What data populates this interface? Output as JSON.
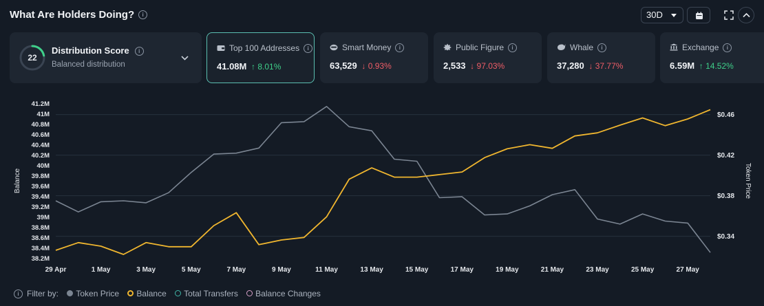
{
  "header": {
    "title": "What Are Holders Doing?",
    "period": "30D"
  },
  "distribution": {
    "score": "22",
    "score_fraction": 0.22,
    "title": "Distribution Score",
    "subtitle": "Balanced distribution"
  },
  "cards": [
    {
      "label": "Top 100 Addresses",
      "icon": "wallet-icon",
      "value": "41.08M",
      "change": "8.01%",
      "direction": "up",
      "arrow": "↑"
    },
    {
      "label": "Smart Money",
      "icon": "smart-money-icon",
      "value": "63,529",
      "change": "0.93%",
      "direction": "down",
      "arrow": "↓"
    },
    {
      "label": "Public Figure",
      "icon": "public-figure-icon",
      "value": "2,533",
      "change": "97.03%",
      "direction": "down",
      "arrow": "↓"
    },
    {
      "label": "Whale",
      "icon": "whale-icon",
      "value": "37,280",
      "change": "37.77%",
      "direction": "down",
      "arrow": "↓"
    },
    {
      "label": "Exchange",
      "icon": "bank-icon",
      "value": "6.59M",
      "change": "14.52%",
      "direction": "up",
      "arrow": "↑"
    }
  ],
  "chart_data": {
    "type": "line",
    "x": [
      "29 Apr",
      "30 Apr",
      "1 May",
      "2 May",
      "3 May",
      "4 May",
      "5 May",
      "6 May",
      "7 May",
      "8 May",
      "9 May",
      "10 May",
      "11 May",
      "12 May",
      "13 May",
      "14 May",
      "15 May",
      "16 May",
      "17 May",
      "18 May",
      "19 May",
      "20 May",
      "21 May",
      "22 May",
      "23 May",
      "24 May",
      "25 May",
      "26 May",
      "27 May",
      "28 May"
    ],
    "x_tick_labels": [
      "29 Apr",
      "1 May",
      "3 May",
      "5 May",
      "7 May",
      "9 May",
      "11 May",
      "13 May",
      "15 May",
      "17 May",
      "19 May",
      "21 May",
      "23 May",
      "25 May",
      "27 May"
    ],
    "ylabel_left": "Balance",
    "ylabel_right": "Token Price",
    "ylim_left": [
      38.15,
      41.3
    ],
    "ylim_right": [
      0.316,
      0.476
    ],
    "y_ticks_left": [
      "38.2M",
      "38.4M",
      "38.6M",
      "38.8M",
      "39M",
      "39.2M",
      "39.4M",
      "39.6M",
      "39.8M",
      "40M",
      "40.2M",
      "40.4M",
      "40.6M",
      "40.8M",
      "41M",
      "41.2M"
    ],
    "y_ticks_left_values": [
      38.2,
      38.4,
      38.6,
      38.8,
      39.0,
      39.2,
      39.4,
      39.6,
      39.8,
      40.0,
      40.2,
      40.4,
      40.6,
      40.8,
      41.0,
      41.2
    ],
    "y_ticks_right": [
      "$0.34",
      "$0.38",
      "$0.42",
      "$0.46"
    ],
    "y_ticks_right_values": [
      0.34,
      0.38,
      0.42,
      0.46
    ],
    "grid": true,
    "series": [
      {
        "name": "Balance",
        "axis": "left",
        "color": "#f0b62f",
        "values": [
          38.35,
          38.5,
          38.43,
          38.27,
          38.5,
          38.42,
          38.42,
          38.83,
          39.08,
          38.46,
          38.55,
          38.6,
          39.0,
          39.73,
          39.95,
          39.77,
          39.77,
          39.82,
          39.87,
          40.15,
          40.32,
          40.4,
          40.33,
          40.57,
          40.63,
          40.78,
          40.92,
          40.77,
          40.9,
          41.08
        ]
      },
      {
        "name": "Token Price",
        "axis": "right",
        "color": "#7b8592",
        "values": [
          0.375,
          0.364,
          0.374,
          0.375,
          0.373,
          0.383,
          0.403,
          0.421,
          0.422,
          0.427,
          0.452,
          0.453,
          0.468,
          0.448,
          0.444,
          0.416,
          0.414,
          0.378,
          0.379,
          0.361,
          0.362,
          0.37,
          0.381,
          0.386,
          0.357,
          0.352,
          0.362,
          0.355,
          0.353,
          0.324
        ]
      }
    ]
  },
  "legend": {
    "filter_label": "Filter by:",
    "items": [
      {
        "label": "Token Price",
        "color": "#7b8592",
        "style": "filled"
      },
      {
        "label": "Balance",
        "color": "#f0b62f",
        "style": "ring"
      },
      {
        "label": "Total Transfers",
        "color": "#3fb4a6",
        "style": "ring"
      },
      {
        "label": "Balance Changes",
        "color": "#d7a0c8",
        "style": "ring"
      }
    ]
  },
  "colors": {
    "background": "#141b25",
    "card": "#1e2631",
    "accent": "#5bbfb1",
    "up": "#3fd08a",
    "down": "#ef5d67"
  }
}
